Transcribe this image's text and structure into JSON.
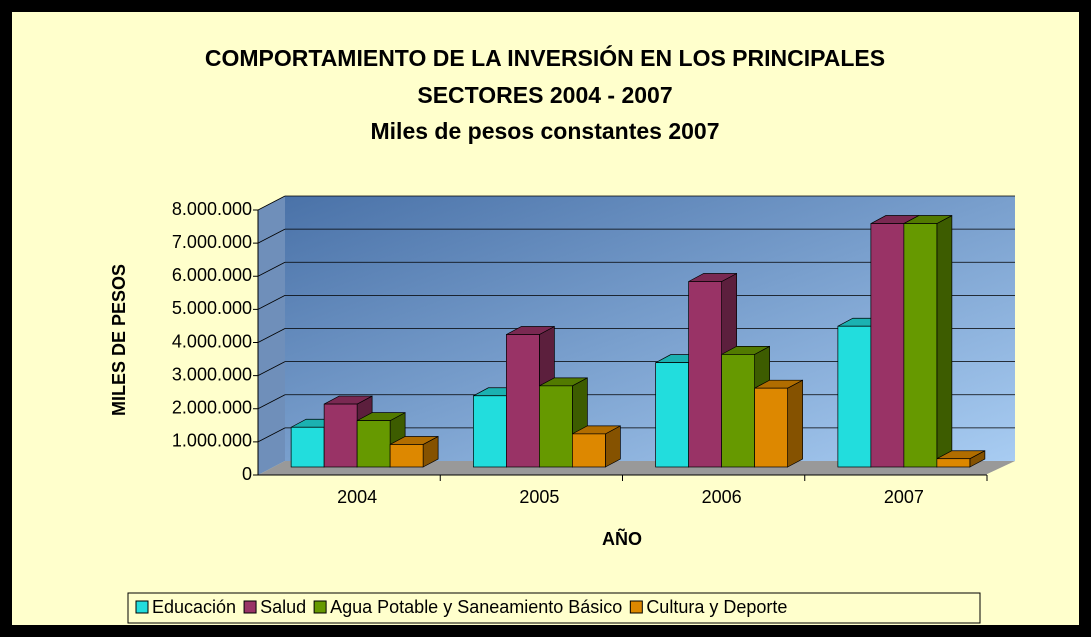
{
  "chart_data": {
    "type": "bar3d",
    "title": [
      "COMPORTAMIENTO DE LA INVERSIÓN EN LOS PRINCIPALES",
      "SECTORES 2004 - 2007",
      "Miles de pesos constantes 2007"
    ],
    "x_label": "AÑO",
    "y_label": "MILES DE PESOS",
    "categories": [
      "2004",
      "2005",
      "2006",
      "2007"
    ],
    "series": [
      {
        "name": "Educación",
        "color": "#22dddd",
        "values": [
          1200000,
          2150000,
          3150000,
          4250000
        ]
      },
      {
        "name": "Salud",
        "color": "#993366",
        "values": [
          1900000,
          4000000,
          5600000,
          7350000
        ]
      },
      {
        "name": "Agua Potable y Saneamiento Básico",
        "color": "#669900",
        "values": [
          1400000,
          2450000,
          3400000,
          7350000
        ]
      },
      {
        "name": "Cultura y Deporte",
        "color": "#dd8800",
        "values": [
          680000,
          1000000,
          2380000,
          250000
        ]
      }
    ],
    "ylim": [
      0,
      8000000
    ],
    "yticks": [
      0,
      {
        "value": 1000000,
        "label": "1.000.000"
      },
      {
        "value": 2000000,
        "label": "2.000.000"
      },
      {
        "value": 3000000,
        "label": "3.000.000"
      },
      {
        "value": 4000000,
        "label": "4.000.000"
      },
      {
        "value": 5000000,
        "label": "5.000.000"
      },
      {
        "value": 6000000,
        "label": "6.000.000"
      },
      {
        "value": 7000000,
        "label": "7.000.000"
      },
      {
        "value": 8000000,
        "label": "8.000.000"
      }
    ],
    "grid": true,
    "legend": "bottom"
  }
}
